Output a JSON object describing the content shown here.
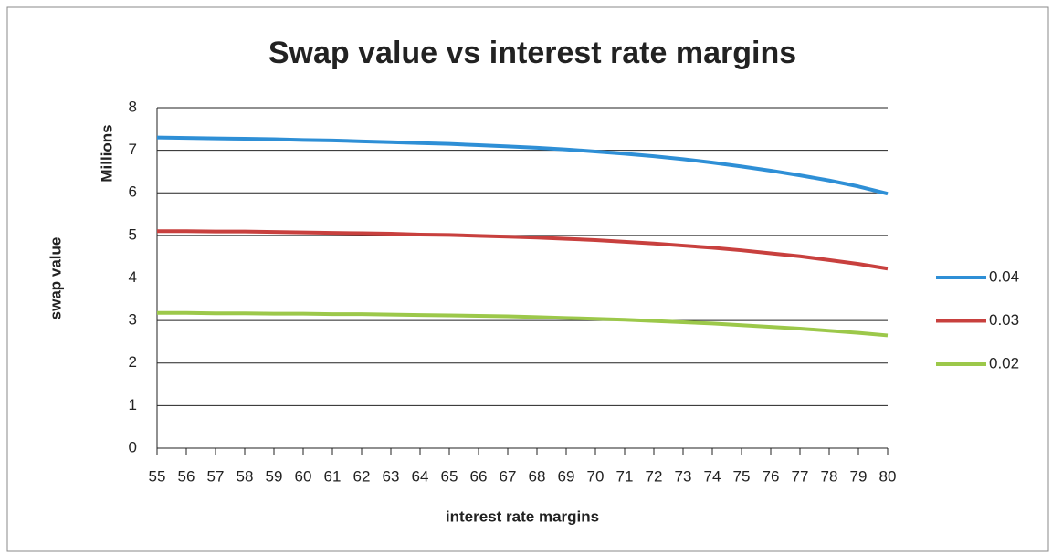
{
  "chart_data": {
    "type": "line",
    "title": "Swap value vs interest rate margins",
    "y_unit_label": "Millions",
    "ylabel": "swap value",
    "xlabel": "interest rate margins",
    "x": [
      55,
      56,
      57,
      58,
      59,
      60,
      61,
      62,
      63,
      64,
      65,
      66,
      67,
      68,
      69,
      70,
      71,
      72,
      73,
      74,
      75,
      76,
      77,
      78,
      79,
      80
    ],
    "series": [
      {
        "name": "0.04",
        "color": "#2e8fd6",
        "values": [
          7.3,
          7.29,
          7.28,
          7.27,
          7.26,
          7.24,
          7.23,
          7.21,
          7.19,
          7.17,
          7.15,
          7.12,
          7.09,
          7.06,
          7.02,
          6.97,
          6.92,
          6.86,
          6.79,
          6.71,
          6.62,
          6.52,
          6.41,
          6.29,
          6.15,
          5.98
        ]
      },
      {
        "name": "0.03",
        "color": "#c8403e",
        "values": [
          5.1,
          5.1,
          5.09,
          5.09,
          5.08,
          5.07,
          5.06,
          5.05,
          5.04,
          5.02,
          5.01,
          4.99,
          4.97,
          4.95,
          4.92,
          4.89,
          4.85,
          4.81,
          4.76,
          4.71,
          4.65,
          4.58,
          4.51,
          4.42,
          4.33,
          4.22
        ]
      },
      {
        "name": "0.02",
        "color": "#9cc84a",
        "values": [
          3.18,
          3.18,
          3.17,
          3.17,
          3.16,
          3.16,
          3.15,
          3.15,
          3.14,
          3.13,
          3.12,
          3.11,
          3.1,
          3.08,
          3.06,
          3.04,
          3.02,
          2.99,
          2.96,
          2.93,
          2.89,
          2.85,
          2.81,
          2.76,
          2.71,
          2.65
        ]
      }
    ],
    "xlim": [
      55,
      80
    ],
    "ylim": [
      0,
      8
    ],
    "yticks": [
      0,
      1,
      2,
      3,
      4,
      5,
      6,
      7,
      8
    ],
    "grid": true,
    "legend": "right"
  }
}
